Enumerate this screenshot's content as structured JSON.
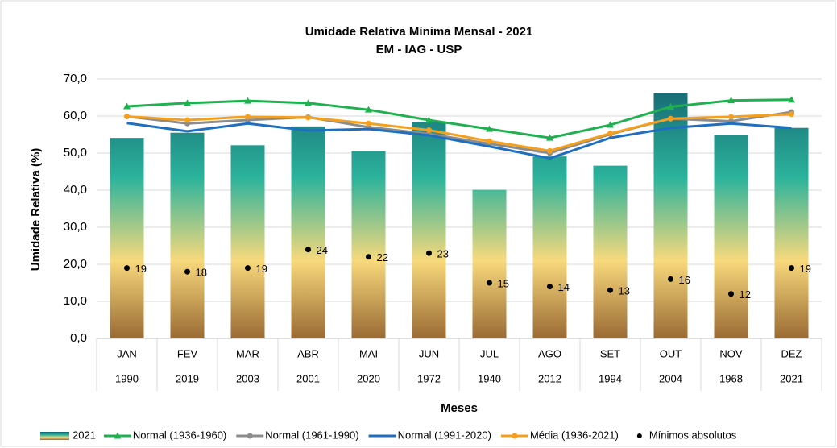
{
  "chart_data": {
    "type": "combo",
    "title": "Umidade Relativa Mínima Mensal - 2021",
    "subtitle": "EM - IAG - USP",
    "y_label": "Umidade Relativa (%)",
    "x_label": "Meses",
    "categories": [
      "JAN",
      "FEV",
      "MAR",
      "ABR",
      "MAI",
      "JUN",
      "JUL",
      "AGO",
      "SET",
      "OUT",
      "NOV",
      "DEZ"
    ],
    "sub_categories": [
      "1990",
      "2019",
      "2003",
      "2001",
      "2020",
      "1972",
      "1940",
      "2012",
      "1994",
      "2004",
      "1968",
      "2021"
    ],
    "ylim": [
      0,
      70
    ],
    "yticks": [
      {
        "value": 0,
        "label": "0,0"
      },
      {
        "value": 10,
        "label": "10,0"
      },
      {
        "value": 20,
        "label": "20,0"
      },
      {
        "value": 30,
        "label": "30,0"
      },
      {
        "value": 40,
        "label": "40,0"
      },
      {
        "value": 50,
        "label": "50,0"
      },
      {
        "value": 60,
        "label": "60,0"
      },
      {
        "value": 70,
        "label": "70,0"
      }
    ],
    "grid": true,
    "bars": {
      "name": "2021",
      "colors": [
        "#15616f",
        "#2bb39c",
        "#f8d97c",
        "#9a6a34"
      ],
      "values": [
        54.1,
        55.5,
        52.1,
        57.2,
        50.5,
        58.3,
        40.1,
        49.1,
        46.6,
        66.1,
        55.0,
        56.8
      ]
    },
    "series": [
      {
        "name": "Normal (1936-1960)",
        "color": "#1fb04f",
        "marker": "triangle",
        "values": [
          62.6,
          63.5,
          64.1,
          63.5,
          61.7,
          58.9,
          56.5,
          54.1,
          57.6,
          62.5,
          64.2,
          64.4
        ]
      },
      {
        "name": "Normal (1961-1990)",
        "color": "#8c8c8c",
        "marker": "circle",
        "values": [
          59.9,
          58.0,
          58.9,
          59.7,
          57.0,
          55.2,
          52.5,
          50.0,
          55.1,
          59.3,
          58.6,
          61.1
        ]
      },
      {
        "name": "Normal (1991-2020)",
        "color": "#1f6fc0",
        "marker": "none",
        "values": [
          58.1,
          55.9,
          58.0,
          56.1,
          56.5,
          54.8,
          51.8,
          48.6,
          54.1,
          56.8,
          58.0,
          56.8
        ]
      },
      {
        "name": "Média (1936-2021)",
        "color": "#f5a01c",
        "marker": "circle",
        "values": [
          59.9,
          58.9,
          59.8,
          59.6,
          58.0,
          56.2,
          53.2,
          50.6,
          55.3,
          59.3,
          59.8,
          60.5
        ]
      }
    ],
    "points": {
      "name": "Mínimos absolutos",
      "color": "#000000",
      "values": [
        19,
        18,
        19,
        24,
        22,
        23,
        15,
        14,
        13,
        16,
        12,
        19
      ]
    }
  }
}
